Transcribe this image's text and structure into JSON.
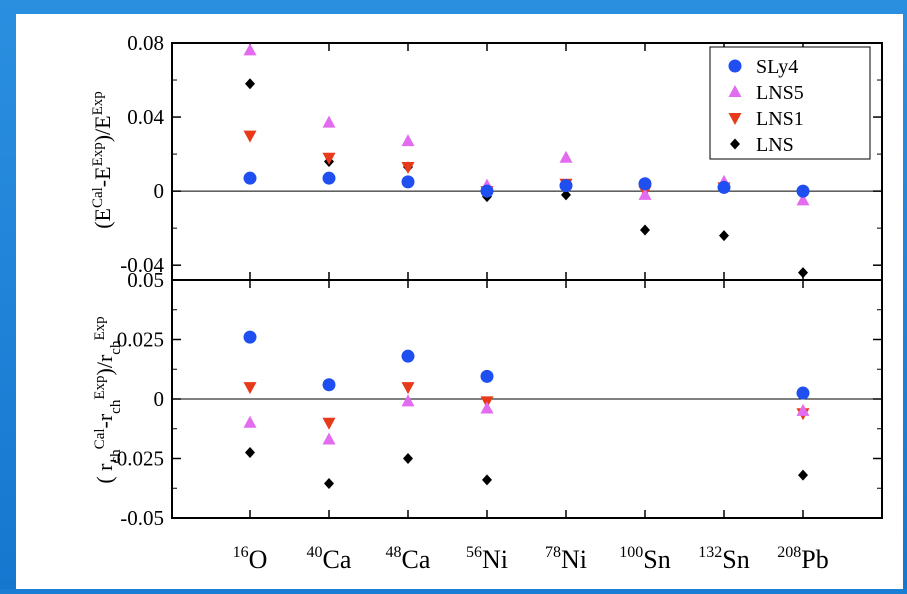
{
  "chart_data": [
    {
      "type": "scatter",
      "title": "",
      "ylabel": "(E^Cal-E^Exp)/E^Exp",
      "ylim": [
        -0.048,
        0.08
      ],
      "yticks": [
        "0.08",
        "0.04",
        "0",
        "-0.04"
      ],
      "ytick_values": [
        0.08,
        0.04,
        0,
        -0.04
      ],
      "categories": [
        "16O",
        "40Ca",
        "48Ca",
        "56Ni",
        "78Ni",
        "100Sn",
        "132Sn",
        "208Pb"
      ],
      "grid": false,
      "legend_position": "top-right",
      "series": [
        {
          "name": "SLy4",
          "marker": "circle",
          "color": "#1f4ff0",
          "values": [
            0.007,
            0.007,
            0.005,
            0.0,
            0.003,
            0.004,
            0.002,
            0.0
          ]
        },
        {
          "name": "LNS5",
          "marker": "triangle-up",
          "color": "#e26bf0",
          "values": [
            0.076,
            0.037,
            0.027,
            0.003,
            0.018,
            -0.002,
            0.005,
            -0.005
          ]
        },
        {
          "name": "LNS1",
          "marker": "triangle-down",
          "color": "#e8391b",
          "values": [
            0.03,
            0.018,
            0.013,
            0.0,
            0.004,
            0.0,
            0.002,
            -0.002
          ]
        },
        {
          "name": "LNS",
          "marker": "diamond",
          "color": "#000000",
          "values": [
            0.058,
            0.016,
            0.013,
            -0.003,
            -0.002,
            -0.021,
            -0.024,
            -0.044
          ]
        }
      ]
    },
    {
      "type": "scatter",
      "title": "",
      "ylabel": "(r_ch^Cal-r_ch^Exp)/r_ch^Exp",
      "ylim": [
        -0.05,
        0.05
      ],
      "yticks": [
        "0.05",
        "0.025",
        "0",
        "-0.025",
        "-0.05"
      ],
      "ytick_values": [
        0.05,
        0.025,
        0,
        -0.025,
        -0.05
      ],
      "categories": [
        "16O",
        "40Ca",
        "48Ca",
        "56Ni",
        "78Ni",
        "100Sn",
        "132Sn",
        "208Pb"
      ],
      "grid": false,
      "series": [
        {
          "name": "SLy4",
          "marker": "circle",
          "color": "#1f4ff0",
          "values": [
            0.026,
            0.006,
            0.018,
            0.0095,
            null,
            null,
            null,
            0.0025
          ]
        },
        {
          "name": "LNS5",
          "marker": "triangle-up",
          "color": "#e26bf0",
          "values": [
            -0.01,
            -0.017,
            -0.001,
            -0.004,
            null,
            null,
            null,
            -0.005
          ]
        },
        {
          "name": "LNS1",
          "marker": "triangle-down",
          "color": "#e8391b",
          "values": [
            0.005,
            -0.01,
            0.005,
            -0.001,
            null,
            null,
            null,
            -0.006
          ]
        },
        {
          "name": "LNS",
          "marker": "diamond",
          "color": "#000000",
          "values": [
            -0.0225,
            -0.0355,
            -0.025,
            -0.034,
            null,
            null,
            null,
            -0.032
          ]
        }
      ]
    }
  ],
  "x_labels": [
    {
      "mass": "16",
      "element": "O"
    },
    {
      "mass": "40",
      "element": "Ca"
    },
    {
      "mass": "48",
      "element": "Ca"
    },
    {
      "mass": "56",
      "element": "Ni"
    },
    {
      "mass": "78",
      "element": "Ni"
    },
    {
      "mass": "100",
      "element": "Sn"
    },
    {
      "mass": "132",
      "element": "Sn"
    },
    {
      "mass": "208",
      "element": "Pb"
    }
  ],
  "legend": [
    "SLy4",
    "LNS5",
    "LNS1",
    "LNS"
  ]
}
